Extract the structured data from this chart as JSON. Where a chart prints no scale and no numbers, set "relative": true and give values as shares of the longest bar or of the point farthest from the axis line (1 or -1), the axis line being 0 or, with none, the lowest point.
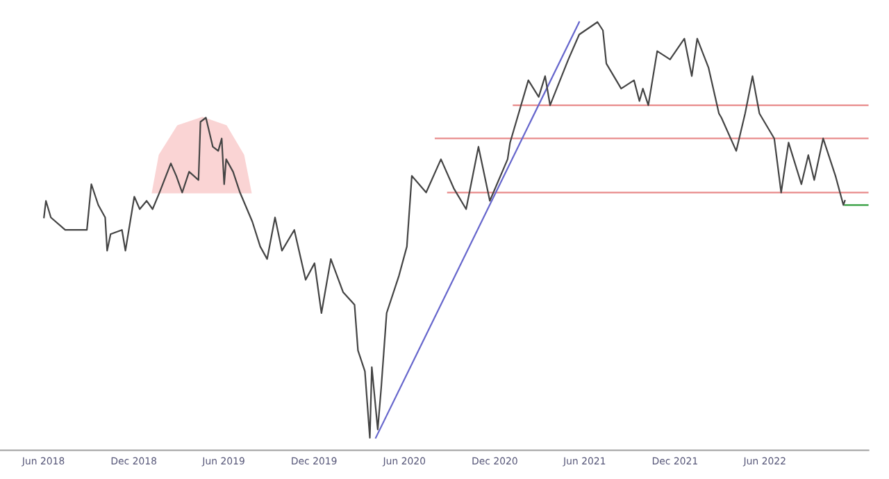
{
  "chart_data": {
    "type": "line",
    "relative": true,
    "xlim": [
      "2018-03-05",
      "2022-12-28"
    ],
    "xticks": [
      {
        "value": "2018-06-01",
        "label": "Jun 2018"
      },
      {
        "value": "2018-12-01",
        "label": "Dec 2018"
      },
      {
        "value": "2019-06-01",
        "label": "Jun 2019"
      },
      {
        "value": "2019-12-01",
        "label": "Dec 2019"
      },
      {
        "value": "2020-06-01",
        "label": "Jun 2020"
      },
      {
        "value": "2020-12-01",
        "label": "Dec 2020"
      },
      {
        "value": "2021-06-01",
        "label": "Jun 2021"
      },
      {
        "value": "2021-12-01",
        "label": "Dec 2021"
      },
      {
        "value": "2022-06-01",
        "label": "Jun 2022"
      }
    ],
    "grid": false,
    "legend": false,
    "marker": "none",
    "line_style": "solid",
    "series": [
      {
        "type": "area",
        "color": "#f7b8b8",
        "x": [
          "2019-01-08",
          "2019-01-22",
          "2019-02-28",
          "2019-04-19",
          "2019-06-06",
          "2019-07-11",
          "2019-07-26"
        ],
        "values": [
          0.59,
          0.68,
          0.75,
          0.77,
          0.75,
          0.68,
          0.59
        ]
      },
      {
        "type": "line",
        "color": "#e88a8a",
        "x": [
          "2021-01-08",
          "2022-12-28"
        ],
        "values": [
          0.8,
          0.8
        ]
      },
      {
        "type": "line",
        "color": "#e88a8a",
        "x": [
          "2020-08-03",
          "2022-12-28"
        ],
        "values": [
          0.72,
          0.72
        ]
      },
      {
        "type": "line",
        "color": "#e88a8a",
        "x": [
          "2020-08-28",
          "2022-12-28"
        ],
        "values": [
          0.59,
          0.59
        ]
      },
      {
        "type": "line",
        "color": "#6666cc",
        "x": [
          "2020-04-04",
          "2021-05-21"
        ],
        "values": [
          0,
          1
        ]
      },
      {
        "type": "line",
        "color": "#2e9b3a",
        "x": [
          "2022-11-10",
          "2022-12-28"
        ],
        "values": [
          0.56,
          0.56
        ]
      },
      {
        "color": "#444444",
        "x": [
          "2018-06-02",
          "2018-06-06",
          "2018-06-16",
          "2018-07-15",
          "2018-08-28",
          "2018-09-06",
          "2018-09-20",
          "2018-10-04",
          "2018-10-08",
          "2018-10-15",
          "2018-11-07",
          "2018-11-14",
          "2018-12-02",
          "2018-12-13",
          "2018-12-27",
          "2019-01-08",
          "2019-01-22",
          "2019-02-14",
          "2019-02-25",
          "2019-03-09",
          "2019-03-23",
          "2019-04-11",
          "2019-04-15",
          "2019-04-26",
          "2019-05-10",
          "2019-05-21",
          "2019-05-28",
          "2019-06-02",
          "2019-06-06",
          "2019-06-20",
          "2019-07-04",
          "2019-07-29",
          "2019-08-14",
          "2019-08-28",
          "2019-09-13",
          "2019-09-27",
          "2019-10-22",
          "2019-11-14",
          "2019-12-02",
          "2019-12-16",
          "2020-01-04",
          "2020-01-29",
          "2020-02-21",
          "2020-02-28",
          "2020-03-13",
          "2020-03-23",
          "2020-03-27",
          "2020-04-08",
          "2020-04-15",
          "2020-04-26",
          "2020-05-21",
          "2020-06-06",
          "2020-06-16",
          "2020-07-15",
          "2020-08-14",
          "2020-09-09",
          "2020-10-04",
          "2020-10-29",
          "2020-11-21",
          "2020-12-27",
          "2021-01-01",
          "2021-02-07",
          "2021-02-28",
          "2021-03-13",
          "2021-03-23",
          "2021-04-29",
          "2021-05-21",
          "2021-06-27",
          "2021-07-08",
          "2021-07-15",
          "2021-08-14",
          "2021-09-09",
          "2021-09-20",
          "2021-09-27",
          "2021-10-08",
          "2021-10-26",
          "2021-11-21",
          "2021-12-20",
          "2022-01-04",
          "2022-01-15",
          "2022-02-07",
          "2022-02-28",
          "2022-03-05",
          "2022-04-04",
          "2022-04-22",
          "2022-05-07",
          "2022-05-21",
          "2022-06-20",
          "2022-07-04",
          "2022-07-19",
          "2022-08-14",
          "2022-08-28",
          "2022-09-09",
          "2022-09-27",
          "2022-10-22",
          "2022-11-07",
          "2022-11-10"
        ],
        "values": [
          0.53,
          0.57,
          0.53,
          0.5,
          0.5,
          0.61,
          0.56,
          0.53,
          0.45,
          0.49,
          0.5,
          0.45,
          0.58,
          0.55,
          0.57,
          0.55,
          0.59,
          0.66,
          0.63,
          0.59,
          0.64,
          0.62,
          0.76,
          0.77,
          0.7,
          0.69,
          0.72,
          0.61,
          0.67,
          0.64,
          0.59,
          0.52,
          0.46,
          0.43,
          0.53,
          0.45,
          0.5,
          0.38,
          0.42,
          0.3,
          0.43,
          0.35,
          0.32,
          0.21,
          0.16,
          0,
          0.17,
          0.02,
          0.12,
          0.3,
          0.39,
          0.46,
          0.63,
          0.59,
          0.67,
          0.6,
          0.55,
          0.7,
          0.57,
          0.67,
          0.71,
          0.86,
          0.82,
          0.87,
          0.8,
          0.91,
          0.97,
          1,
          0.98,
          0.9,
          0.84,
          0.86,
          0.81,
          0.84,
          0.8,
          0.93,
          0.91,
          0.96,
          0.87,
          0.96,
          0.89,
          0.78,
          0.77,
          0.69,
          0.78,
          0.87,
          0.78,
          0.72,
          0.59,
          0.71,
          0.61,
          0.68,
          0.62,
          0.72,
          0.63,
          0.56,
          0.57
        ]
      }
    ]
  }
}
